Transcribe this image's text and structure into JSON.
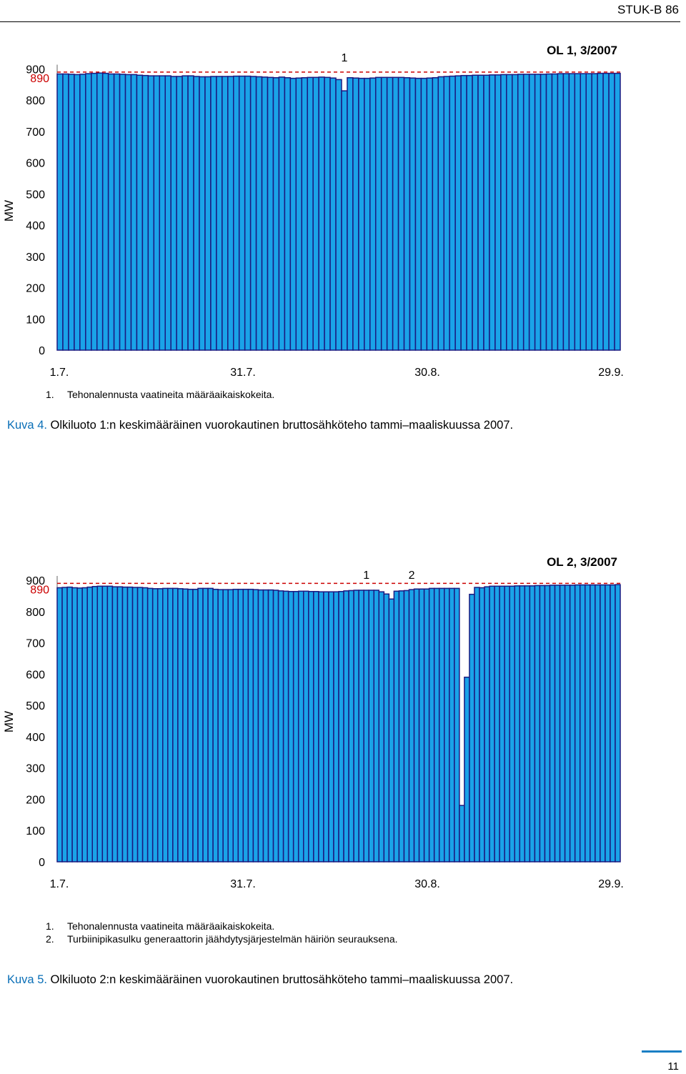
{
  "header": {
    "label": "STUK-B 86"
  },
  "page_number": "11",
  "figures": [
    {
      "notes": [
        {
          "num": "1.",
          "text": "Tehonalennusta vaatineita määräaikaiskokeita."
        }
      ],
      "caption": {
        "label": "Kuva 4.",
        "text": " Olkiluoto 1:n keskimääräinen vuorokautinen bruttosähköteho tammi–maaliskuussa 2007."
      }
    },
    {
      "notes": [
        {
          "num": "1.",
          "text": "Tehonalennusta vaatineita määräaikaiskokeita."
        },
        {
          "num": "2.",
          "text": "Turbiinipikasulku generaattorin jäähdytysjärjestelmän häiriön seurauksena."
        }
      ],
      "caption": {
        "label": "Kuva 5.",
        "text": " Olkiluoto 2:n keskimääräinen vuorokautinen bruttosähköteho tammi–maaliskuussa 2007."
      }
    }
  ],
  "chart_data": [
    {
      "type": "bar",
      "title": "OL 1, 3/2007",
      "ylabel": "MW",
      "ylim": [
        0,
        900
      ],
      "yticks": [
        "0",
        "100",
        "200",
        "300",
        "400",
        "500",
        "600",
        "700",
        "800",
        "900"
      ],
      "xtick_labels": [
        "1.7.",
        "31.7.",
        "30.8.",
        "29.9."
      ],
      "reference_line": {
        "label": "890",
        "value": 890,
        "color": "#cc0000"
      },
      "annotations": [
        {
          "text": "1",
          "day": 50
        }
      ],
      "bar_color": "#1aa3e8",
      "bar_edge_color": "#1a1a80",
      "values": [
        884,
        884,
        883,
        882,
        883,
        885,
        886,
        887,
        886,
        884,
        884,
        883,
        882,
        882,
        880,
        879,
        878,
        878,
        878,
        878,
        876,
        876,
        878,
        878,
        876,
        875,
        875,
        876,
        876,
        876,
        876,
        877,
        877,
        877,
        876,
        875,
        874,
        873,
        872,
        874,
        872,
        870,
        871,
        872,
        873,
        873,
        874,
        873,
        871,
        866,
        830,
        872,
        871,
        870,
        870,
        871,
        873,
        873,
        873,
        873,
        873,
        872,
        871,
        870,
        870,
        871,
        872,
        875,
        876,
        877,
        878,
        879,
        879,
        880,
        880,
        880,
        881,
        881,
        882,
        882,
        882,
        883,
        883,
        883,
        883,
        883,
        884,
        884,
        885,
        885,
        885,
        885,
        885,
        885,
        885,
        886,
        886,
        886,
        886
      ]
    },
    {
      "type": "bar",
      "title": "OL 2, 3/2007",
      "ylabel": "MW",
      "ylim": [
        0,
        900
      ],
      "yticks": [
        "0",
        "100",
        "200",
        "300",
        "400",
        "500",
        "600",
        "700",
        "800",
        "900"
      ],
      "xtick_labels": [
        "1.7.",
        "31.7.",
        "30.8.",
        "29.9."
      ],
      "reference_line": {
        "label": "890",
        "value": 890,
        "color": "#cc0000"
      },
      "annotations": [
        {
          "text": "1",
          "day": 61
        },
        {
          "text": "2",
          "day": 70
        }
      ],
      "bar_color": "#1aa3e8",
      "bar_edge_color": "#1a1a80",
      "values": [
        876,
        877,
        878,
        876,
        875,
        876,
        878,
        880,
        881,
        881,
        881,
        879,
        879,
        878,
        878,
        877,
        877,
        876,
        874,
        873,
        873,
        874,
        874,
        874,
        873,
        872,
        871,
        871,
        874,
        874,
        874,
        871,
        870,
        870,
        870,
        871,
        871,
        871,
        871,
        870,
        869,
        869,
        869,
        868,
        866,
        865,
        864,
        864,
        865,
        865,
        864,
        864,
        863,
        863,
        863,
        863,
        864,
        866,
        867,
        868,
        868,
        868,
        868,
        868,
        863,
        856,
        840,
        865,
        866,
        867,
        870,
        872,
        872,
        872,
        874,
        874,
        874,
        874,
        874,
        874,
        180,
        590,
        855,
        877,
        876,
        879,
        881,
        881,
        881,
        881,
        881,
        882,
        882,
        882,
        882,
        883,
        883,
        883,
        884,
        884,
        884,
        884,
        884,
        885,
        885,
        885,
        885,
        885,
        885,
        885,
        885,
        886
      ]
    }
  ]
}
